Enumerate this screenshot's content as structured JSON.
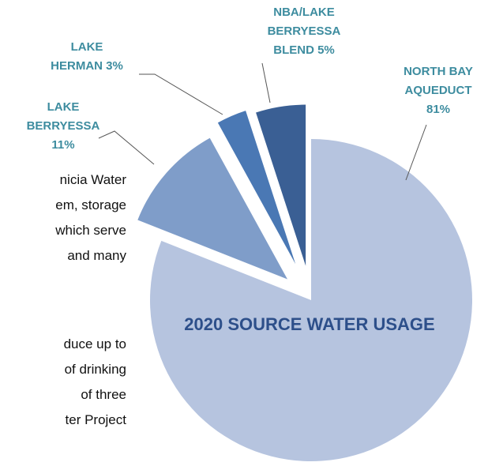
{
  "chart_data": {
    "type": "pie",
    "title": "2020 SOURCE WATER USAGE",
    "exploded": true,
    "slices": [
      {
        "label_lines": [
          "NORTH BAY",
          "AQUEDUCT",
          "81%"
        ],
        "value": 81,
        "color": "#b6c4df"
      },
      {
        "label_lines": [
          "LAKE",
          "BERRYESSA",
          "11%"
        ],
        "value": 11,
        "color": "#7f9dc9"
      },
      {
        "label_lines": [
          "LAKE",
          "HERMAN 3%"
        ],
        "value": 3,
        "color": "#4a78b4"
      },
      {
        "label_lines": [
          "NBA/LAKE",
          "BERRYESSA",
          "BLEND 5%"
        ],
        "value": 5,
        "color": "#3a5f94"
      }
    ],
    "label_color": "#3d8c9f",
    "title_color": "#2d4f8a"
  },
  "body_text": {
    "para1": [
      "nicia Water",
      "em, storage",
      "which serve",
      "and many"
    ],
    "para2": [
      "duce up to",
      "of drinking",
      "of three",
      "ter Project"
    ]
  }
}
